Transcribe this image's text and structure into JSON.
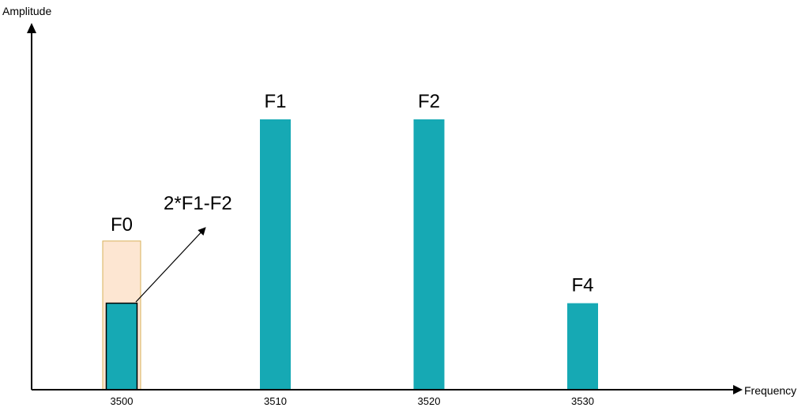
{
  "chart_data": {
    "type": "bar",
    "xlabel": "Frequency",
    "ylabel": "Amplitude",
    "x_ticks": [
      3500,
      3510,
      3520,
      3530
    ],
    "bars": [
      {
        "label": "F0",
        "x": 3500,
        "value": 32
      },
      {
        "label": "F1",
        "x": 3510,
        "value": 100
      },
      {
        "label": "F2",
        "x": 3520,
        "value": 100
      },
      {
        "label": "F4",
        "x": 3530,
        "value": 32
      }
    ],
    "highlight": {
      "x": 3500,
      "value": 55
    },
    "annotation": {
      "text": "2*F1-F2",
      "points_to": "F0"
    },
    "colors": {
      "bar": "#16a9b4",
      "bar_outline": "#000000",
      "highlight_fill": "#fde6d2",
      "highlight_stroke": "#d8b15a",
      "axis": "#000000"
    }
  }
}
